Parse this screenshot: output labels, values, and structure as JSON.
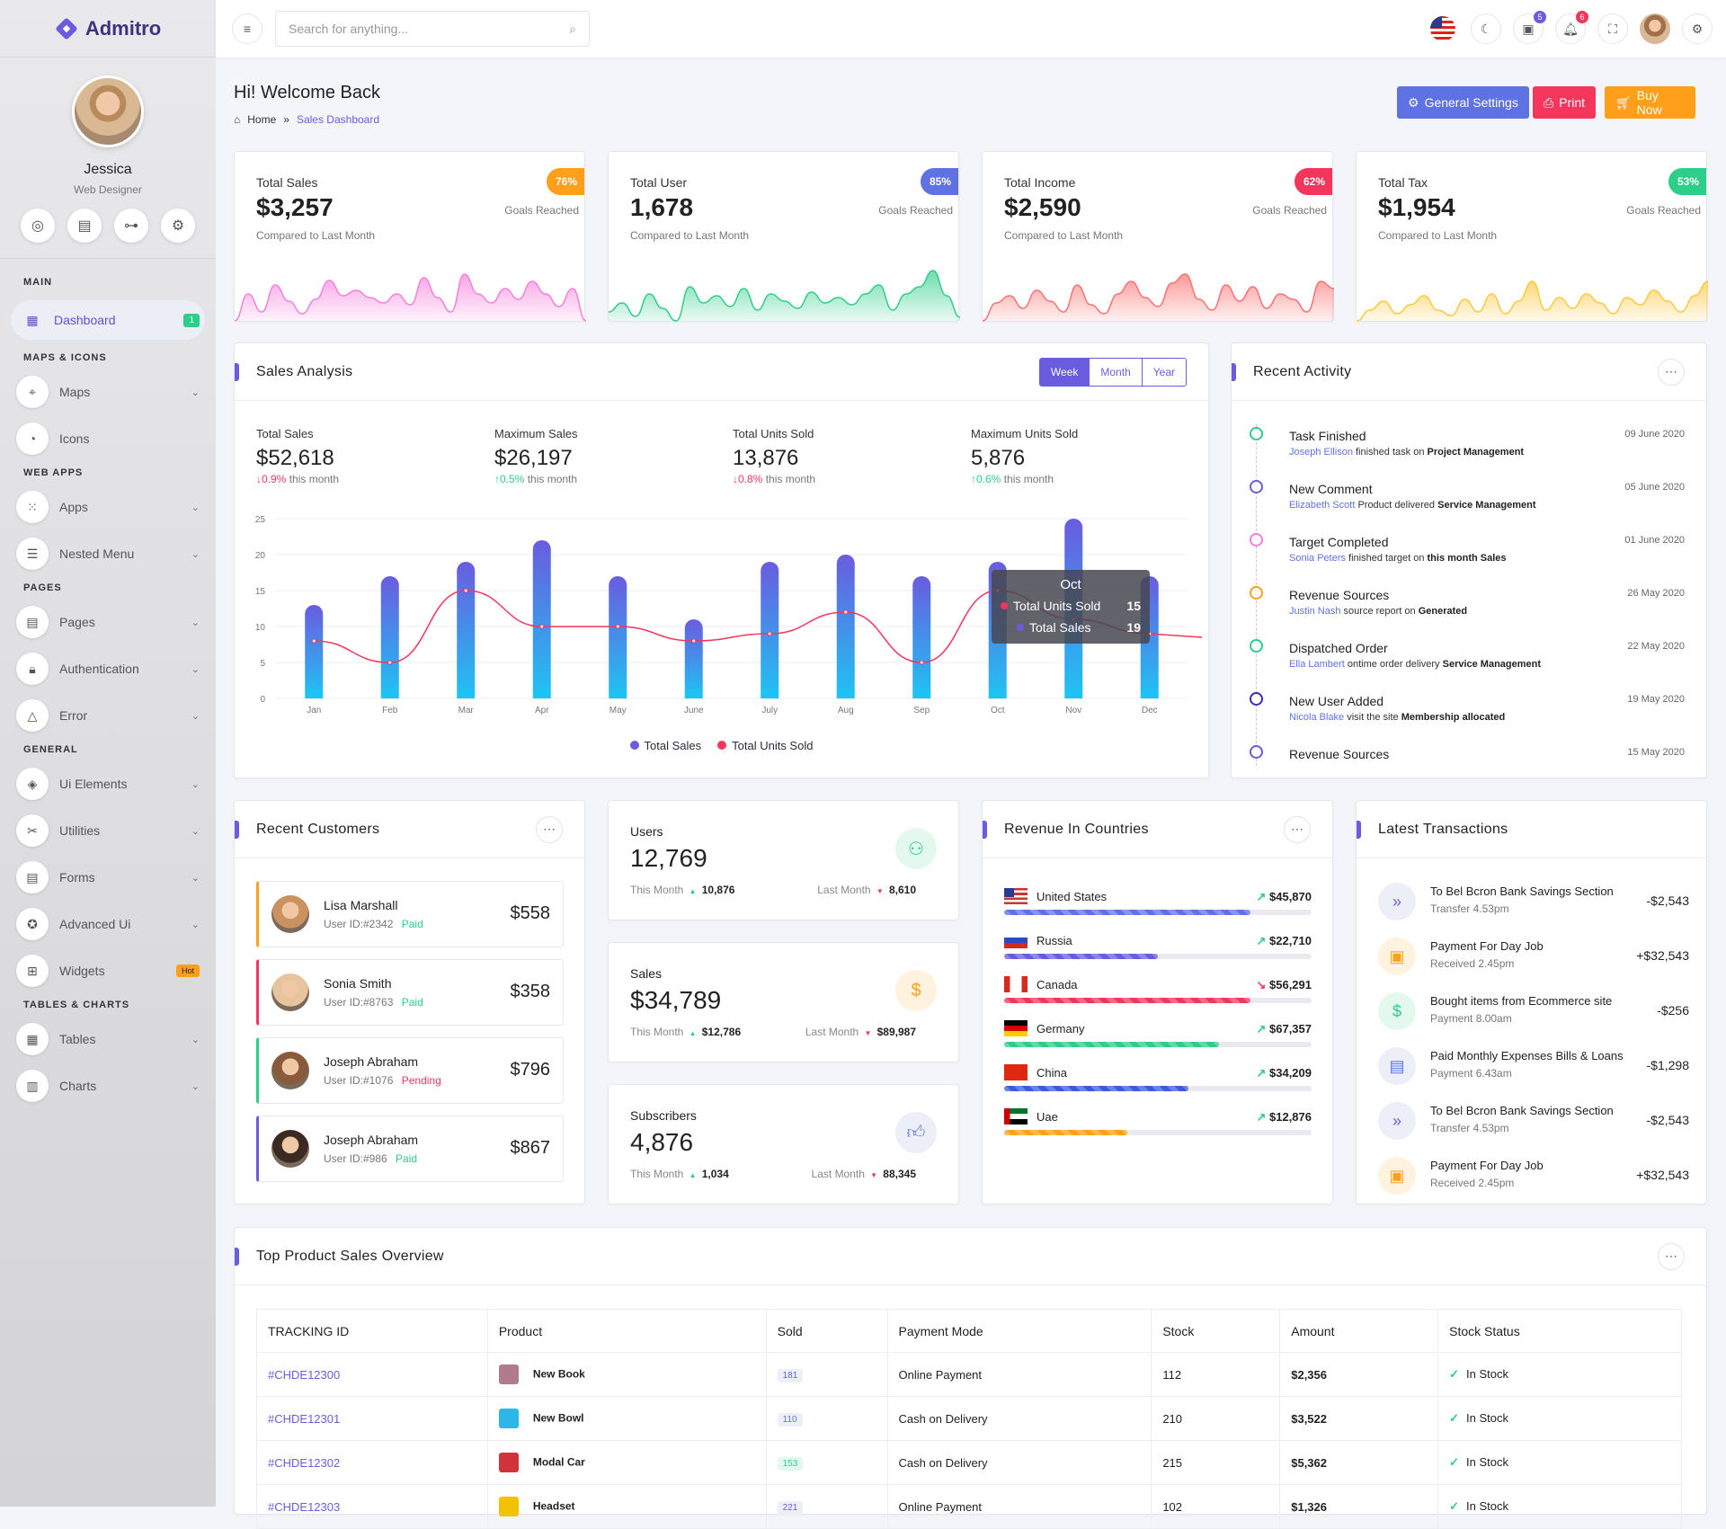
{
  "app": {
    "name": "Admitro"
  },
  "profile": {
    "name": "Jessica",
    "role": "Web Designer"
  },
  "sidebar": {
    "sections": {
      "main": "MAIN",
      "maps": "MAPS & ICONS",
      "web": "WEB APPS",
      "pages": "PAGES",
      "general": "GENERAL",
      "tables": "TABLES & CHARTS"
    },
    "dashboard": {
      "label": "Dashboard",
      "badge": "1"
    },
    "maps": "Maps",
    "icons": "Icons",
    "apps": "Apps",
    "nested": "Nested Menu",
    "pages": "Pages",
    "auth": "Authentication",
    "error": "Error",
    "ui": "Ui Elements",
    "utilities": "Utilities",
    "forms": "Forms",
    "advanced": "Advanced Ui",
    "widgets": {
      "label": "Widgets",
      "badge": "Hot"
    },
    "tables": "Tables",
    "charts": "Charts"
  },
  "topbar": {
    "search_placeholder": "Search for anything...",
    "cart_count": "5",
    "notif_count": "6"
  },
  "header": {
    "title": "Hi! Welcome Back",
    "crumb_home": "Home",
    "crumb_sep": "»",
    "crumb_current": "Sales Dashboard",
    "btn_settings": "General Settings",
    "btn_print": "Print",
    "btn_buy": "Buy Now"
  },
  "kpis": [
    {
      "label": "Total Sales",
      "value": "$3,257",
      "sub": "Compared to Last Month",
      "pct": "76%",
      "goal": "Goals Reached"
    },
    {
      "label": "Total User",
      "value": "1,678",
      "sub": "Compared to Last Month",
      "pct": "85%",
      "goal": "Goals Reached"
    },
    {
      "label": "Total Income",
      "value": "$2,590",
      "sub": "Compared to Last Month",
      "pct": "62%",
      "goal": "Goals Reached"
    },
    {
      "label": "Total Tax",
      "value": "$1,954",
      "sub": "Compared to Last Month",
      "pct": "53%",
      "goal": "Goals Reached"
    }
  ],
  "sales_analysis": {
    "title": "Sales Analysis",
    "tabs": [
      "Week",
      "Month",
      "Year"
    ],
    "stats": [
      {
        "label": "Total Sales",
        "value": "$52,618",
        "change": "0.9%",
        "dir": "down",
        "suffix": "this month"
      },
      {
        "label": "Maximum Sales",
        "value": "$26,197",
        "change": "0.5%",
        "dir": "up",
        "suffix": "this month"
      },
      {
        "label": "Total Units Sold",
        "value": "13,876",
        "change": "0.8%",
        "dir": "down",
        "suffix": "this month"
      },
      {
        "label": "Maximum Units Sold",
        "value": "5,876",
        "change": "0.6%",
        "dir": "up",
        "suffix": "this month"
      }
    ],
    "tooltip": {
      "title": "Oct",
      "s1": "Total Units Sold",
      "v1": "15",
      "s2": "Total Sales",
      "v2": "19"
    }
  },
  "chart_data": {
    "type": "bar",
    "categories": [
      "Jan",
      "Feb",
      "Mar",
      "Apr",
      "May",
      "June",
      "July",
      "Aug",
      "Sep",
      "Oct",
      "Nov",
      "Dec"
    ],
    "series": [
      {
        "name": "Total Sales",
        "type": "bar",
        "values": [
          13,
          17,
          19,
          22,
          17,
          11,
          19,
          20,
          17,
          19,
          25,
          17
        ]
      },
      {
        "name": "Total Units Sold",
        "type": "line",
        "values": [
          8,
          5,
          15,
          10,
          10,
          8,
          9,
          12,
          5,
          15,
          11,
          9
        ]
      }
    ],
    "ylim": [
      0,
      25
    ],
    "yticks": [
      "0",
      "5",
      "10",
      "15",
      "20",
      "25"
    ],
    "legend": "bottom",
    "colors": {
      "bar_top": "#6a5cdf",
      "bar_bottom": "#1fc3f3",
      "line": "#f5365c"
    }
  },
  "activity": {
    "title": "Recent Activity",
    "items": [
      {
        "title": "Task Finished",
        "name": "Joseph Ellison",
        "text": "finished task on",
        "strong": "Project Management",
        "date": "09 June 2020",
        "color": "#2dce89"
      },
      {
        "title": "New Comment",
        "name": "Elizabeth Scott",
        "text": "Product delivered",
        "strong": "Service Management",
        "date": "05 June 2020",
        "color": "#6a5cdf"
      },
      {
        "title": "Target Completed",
        "name": "Sonia Peters",
        "text": "finished target on",
        "strong": "this month Sales",
        "date": "01 June 2020",
        "color": "#f77eda"
      },
      {
        "title": "Revenue Sources",
        "name": "Justin Nash",
        "text": "source report on",
        "strong": "Generated",
        "date": "26 May 2020",
        "color": "#ff9f1a"
      },
      {
        "title": "Dispatched Order",
        "name": "Ella Lambert",
        "text": "ontime order delivery",
        "strong": "Service Management",
        "date": "22 May 2020",
        "color": "#2dce89"
      },
      {
        "title": "New User Added",
        "name": "Nicola Blake",
        "text": "visit the site",
        "strong": "Membership allocated",
        "date": "19 May 2020",
        "color": "#3b2bb8"
      },
      {
        "title": "Revenue Sources",
        "name": "",
        "text": "",
        "strong": "",
        "date": "15 May 2020",
        "color": "#6a5cdf"
      }
    ]
  },
  "customers": {
    "title": "Recent Customers",
    "items": [
      {
        "name": "Lisa Marshall",
        "id": "User ID:#2342",
        "status": "Paid",
        "amount": "$558",
        "color": "#ff9f1a"
      },
      {
        "name": "Sonia Smith",
        "id": "User ID:#8763",
        "status": "Paid",
        "amount": "$358",
        "color": "#f5365c"
      },
      {
        "name": "Joseph Abraham",
        "id": "User ID:#1076",
        "status": "Pending",
        "amount": "$796",
        "color": "#2dce89"
      },
      {
        "name": "Joseph Abraham",
        "id": "User ID:#986",
        "status": "Paid",
        "amount": "$867",
        "color": "#6a5cdf"
      }
    ]
  },
  "minis": [
    {
      "label": "Users",
      "value": "12,769",
      "this_label": "This Month",
      "this_val": "10,876",
      "last_label": "Last Month",
      "last_val": "8,610"
    },
    {
      "label": "Sales",
      "value": "$34,789",
      "this_label": "This Month",
      "this_val": "$12,786",
      "last_label": "Last Month",
      "last_val": "$89,987"
    },
    {
      "label": "Subscribers",
      "value": "4,876",
      "this_label": "This Month",
      "this_val": "1,034",
      "last_label": "Last Month",
      "last_val": "88,345"
    }
  ],
  "revenue": {
    "title": "Revenue In Countries",
    "items": [
      {
        "country": "United States",
        "value": "$45,870",
        "trend": "up",
        "pct": 80,
        "color": "#5e72e4"
      },
      {
        "country": "Russia",
        "value": "$22,710",
        "trend": "up",
        "pct": 50,
        "color": "#6a5cdf"
      },
      {
        "country": "Canada",
        "value": "$56,291",
        "trend": "down",
        "pct": 80,
        "color": "#f5365c"
      },
      {
        "country": "Germany",
        "value": "$67,357",
        "trend": "up",
        "pct": 70,
        "color": "#2dce89"
      },
      {
        "country": "China",
        "value": "$34,209",
        "trend": "up",
        "pct": 60,
        "color": "#3b5bdb"
      },
      {
        "country": "Uae",
        "value": "$12,876",
        "trend": "up",
        "pct": 40,
        "color": "#ff9f1a"
      }
    ]
  },
  "transactions": {
    "title": "Latest Transactions",
    "items": [
      {
        "title": "To Bel Bcron Bank Savings Section",
        "sub": "Transfer 4.53pm",
        "amount": "-$2,543",
        "icon": "»",
        "bg": "#eceef8",
        "fg": "#6a5cdf"
      },
      {
        "title": "Payment For  Day Job",
        "sub": "Received 2.45pm",
        "amount": "+$32,543",
        "icon": "▣",
        "bg": "#fff3e0",
        "fg": "#ff9f1a"
      },
      {
        "title": "Bought items from Ecommerce site",
        "sub": "Payment 8.00am",
        "amount": "-$256",
        "icon": "$",
        "bg": "#e3f9ee",
        "fg": "#2dce89"
      },
      {
        "title": "Paid Monthly Expenses Bills & Loans",
        "sub": "Payment 6.43am",
        "amount": "-$1,298",
        "icon": "▤",
        "bg": "#eceef8",
        "fg": "#5e72e4"
      },
      {
        "title": "To Bel Bcron Bank Savings Section",
        "sub": "Transfer 4.53pm",
        "amount": "-$2,543",
        "icon": "»",
        "bg": "#eceef8",
        "fg": "#6a5cdf"
      },
      {
        "title": "Payment For  Day Job",
        "sub": "Received 2.45pm",
        "amount": "+$32,543",
        "icon": "▣",
        "bg": "#fff3e0",
        "fg": "#ff9f1a"
      }
    ]
  },
  "products": {
    "title": "Top Product Sales Overview",
    "headers": [
      "TRACKING ID",
      "Product",
      "Sold",
      "Payment Mode",
      "Stock",
      "Amount",
      "Stock Status"
    ],
    "rows": [
      {
        "id": "#CHDE12300",
        "product": "New Book",
        "sold": "181",
        "mode": "Online Payment",
        "stock": "112",
        "amount": "$2,356",
        "status": "In Stock",
        "sc": "#eceef8",
        "sf": "#6a5cdf",
        "img": "#b07c8c"
      },
      {
        "id": "#CHDE12301",
        "product": "New Bowl",
        "sold": "110",
        "mode": "Cash on Delivery",
        "stock": "210",
        "amount": "$3,522",
        "status": "In Stock",
        "sc": "#eceef8",
        "sf": "#5e72e4",
        "img": "#2fb6e8"
      },
      {
        "id": "#CHDE12302",
        "product": "Modal Car",
        "sold": "153",
        "mode": "Cash on Delivery",
        "stock": "215",
        "amount": "$5,362",
        "status": "In Stock",
        "sc": "#e3f9ee",
        "sf": "#2dce89",
        "img": "#d0343a"
      },
      {
        "id": "#CHDE12303",
        "product": "Headset",
        "sold": "221",
        "mode": "Online Payment",
        "stock": "102",
        "amount": "$1,326",
        "status": "In Stock",
        "sc": "#eceef8",
        "sf": "#6a5cdf",
        "img": "#f2c200"
      }
    ]
  }
}
